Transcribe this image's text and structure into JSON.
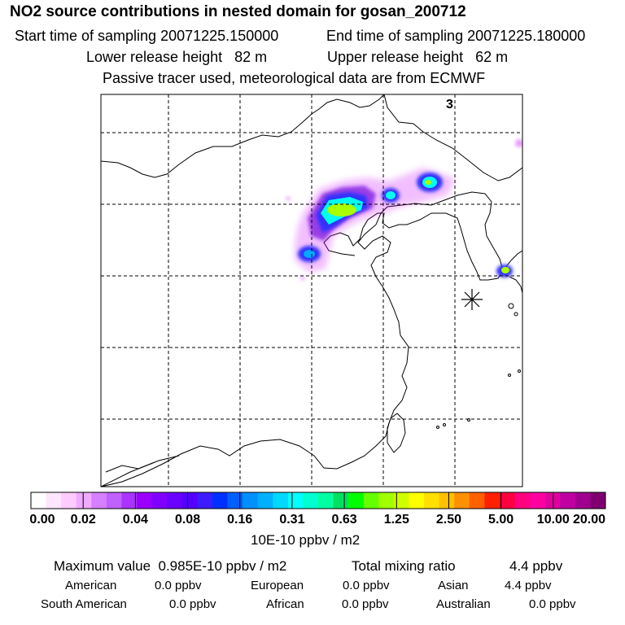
{
  "header": {
    "title": "NO2 source contributions in nested domain for gosan_200712",
    "start_label": "Start time of sampling",
    "start_value": "20071225.150000",
    "end_label": "End time of sampling",
    "end_value": "20071225.180000",
    "lower_label": "Lower release height",
    "lower_value": "82 m",
    "upper_label": "Upper release height",
    "upper_value": "62 m",
    "note": "Passive tracer used, meteorological data are from ECMWF"
  },
  "map": {
    "corner_label": "3",
    "receptor_marker": "gosan-receptor-star",
    "plume_colors": [
      "#cc00ff",
      "#8a2be2",
      "#3333ff",
      "#00aaff",
      "#00ffee",
      "#aaff00"
    ]
  },
  "colorbar": {
    "colors": [
      "#ffffff",
      "#ffe6ff",
      "#ffccff",
      "#f0aaff",
      "#d67fff",
      "#c060ff",
      "#aa33ff",
      "#9900ff",
      "#8000ff",
      "#6a00ff",
      "#5500ff",
      "#3c1cff",
      "#0030ff",
      "#0060ff",
      "#0090ff",
      "#00b0ff",
      "#00d8ff",
      "#00ffff",
      "#00ffd0",
      "#00ffa0",
      "#00e060",
      "#00ff00",
      "#66ff00",
      "#a0ff00",
      "#d0ff00",
      "#ffff00",
      "#ffe000",
      "#ffc000",
      "#ff9000",
      "#ff6000",
      "#ff2000",
      "#ff0040",
      "#ff0080",
      "#ff00a0",
      "#e000a0",
      "#c000a0",
      "#a00090",
      "#800070"
    ],
    "labels": [
      "0.00",
      "0.02",
      "0.04",
      "0.08",
      "0.16",
      "0.31",
      "0.63",
      "1.25",
      "2.50",
      "5.00",
      "10.00",
      "20.00"
    ],
    "unit": "10E-10 ppbv / m2"
  },
  "summary": {
    "max_label": "Maximum value",
    "max_value": "0.985E-10 ppbv / m2",
    "total_label": "Total mixing ratio",
    "total_value": "4.4 ppbv",
    "regions": [
      {
        "name": "American",
        "value": "0.0 ppbv"
      },
      {
        "name": "European",
        "value": "0.0 ppbv"
      },
      {
        "name": "Asian",
        "value": "4.4 ppbv"
      },
      {
        "name": "South American",
        "value": "0.0 ppbv"
      },
      {
        "name": "African",
        "value": "0.0 ppbv"
      },
      {
        "name": "Australian",
        "value": "0.0 ppbv"
      }
    ]
  }
}
